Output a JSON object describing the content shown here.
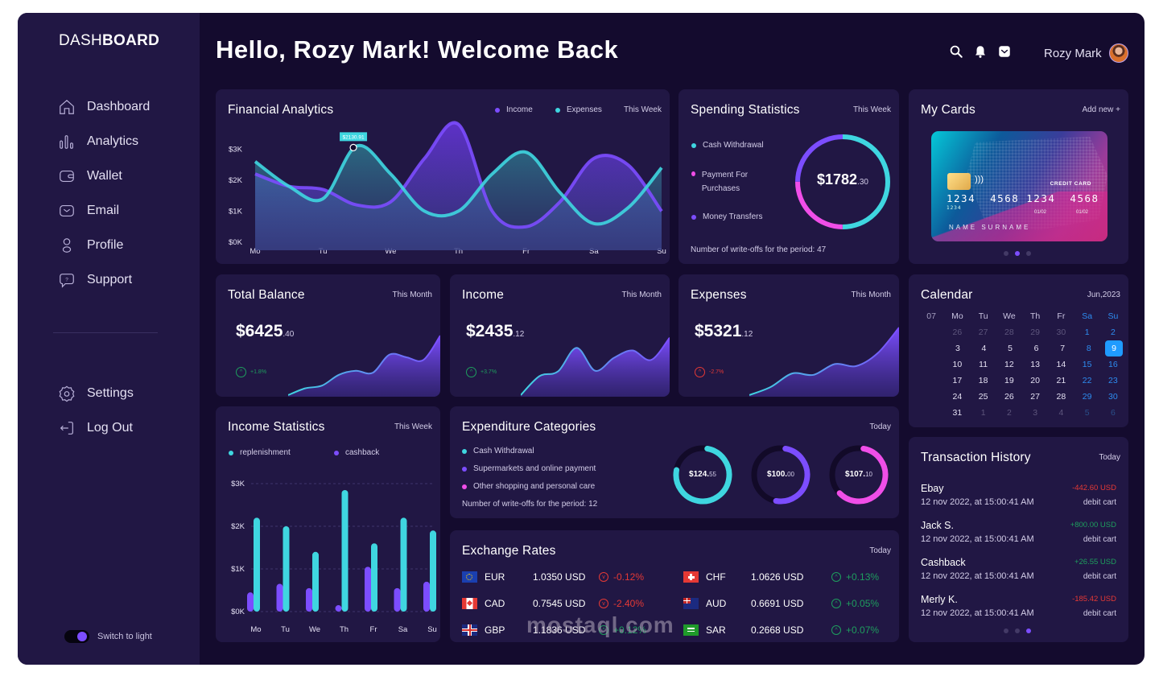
{
  "sidebar": {
    "logo_light": "DASH",
    "logo_bold": "BOARD",
    "items": [
      {
        "label": "Dashboard",
        "icon": "home-icon"
      },
      {
        "label": "Analytics",
        "icon": "bar-chart-icon"
      },
      {
        "label": "Wallet",
        "icon": "wallet-icon"
      },
      {
        "label": "Email",
        "icon": "mail-icon"
      },
      {
        "label": "Profile",
        "icon": "user-icon"
      },
      {
        "label": "Support",
        "icon": "help-chat-icon"
      }
    ],
    "bottom_items": [
      {
        "label": "Settings",
        "icon": "gear-icon"
      },
      {
        "label": "Log Out",
        "icon": "logout-icon"
      }
    ],
    "theme_toggle_label": "Switch to light"
  },
  "header": {
    "greeting": "Hello, Rozy Mark! Welcome Back",
    "user_name": "Rozy Mark"
  },
  "financial_analytics": {
    "title": "Financial Analytics",
    "legend": [
      "Income",
      "Expenses"
    ],
    "period": "This Week",
    "tooltip": "$2130.91",
    "y_ticks": [
      "$3K",
      "$2K",
      "$1K",
      "$0K"
    ],
    "x_ticks": [
      "Mo",
      "Tu",
      "We",
      "Th",
      "Fr",
      "Sa",
      "Su"
    ]
  },
  "spending_statistics": {
    "title": "Spending Statistics",
    "period": "This Week",
    "legend": [
      "Cash  Withdrawal",
      "Payment For Purchases",
      "Money Transfers"
    ],
    "total_main": "$1782",
    "total_cents": ".30",
    "footer": "Number of write-offs for the period: 47",
    "shares": {
      "cash_withdrawal": 0.5,
      "payment_for_purchases": 0.25,
      "money_transfers": 0.25
    }
  },
  "my_cards": {
    "title": "My Cards",
    "add_label": "Add new +",
    "card": {
      "type": "CREDIT CARD",
      "number": "1234  4568 1234  4568",
      "small_number": "1234",
      "valid_from": "01/02",
      "expires": "01/02",
      "holder": "NAME SURNAME"
    },
    "active_page": 2,
    "pages": 3
  },
  "total_balance": {
    "title": "Total Balance",
    "period": "This Month",
    "value": "$6425",
    "cents": ".40",
    "change": "+1.8%",
    "trend": "up"
  },
  "income": {
    "title": "Income",
    "period": "This Month",
    "value": "$2435",
    "cents": ".12",
    "change": "+3.7%",
    "trend": "up"
  },
  "expenses": {
    "title": "Expenses",
    "period": "This Month",
    "value": "$5321",
    "cents": ".12",
    "change": "-2.7%",
    "trend": "down"
  },
  "calendar": {
    "title": "Calendar",
    "month": "Jun,2023",
    "header": [
      "07",
      "Mo",
      "Tu",
      "We",
      "Th",
      "Fr",
      "Sa",
      "Su"
    ],
    "weeks": [
      [
        "26",
        "27",
        "28",
        "29",
        "30",
        "1",
        "2"
      ],
      [
        "3",
        "4",
        "5",
        "6",
        "7",
        "8",
        "9"
      ],
      [
        "10",
        "11",
        "12",
        "13",
        "14",
        "15",
        "16"
      ],
      [
        "17",
        "18",
        "19",
        "20",
        "21",
        "22",
        "23"
      ],
      [
        "24",
        "25",
        "26",
        "27",
        "28",
        "29",
        "30"
      ],
      [
        "31",
        "1",
        "2",
        "3",
        "4",
        "5",
        "6"
      ]
    ],
    "selected": "9"
  },
  "income_statistics": {
    "title": "Income Statistics",
    "period": "This Week",
    "legend": [
      "replenishment",
      "cashback"
    ]
  },
  "expenditure_categories": {
    "title": "Expenditure Categories",
    "period": "Today",
    "legend": [
      "Cash Withdrawal",
      "Supermarkets and online payment",
      "Other shopping and personal care"
    ],
    "footer": "Number of write-offs for the period: 12",
    "rings": [
      {
        "main": "$124.",
        "cents": "55",
        "fraction": 0.75,
        "color": "#3fd6e0"
      },
      {
        "main": "$100.",
        "cents": "00",
        "fraction": 0.5,
        "color": "#7c4dff"
      },
      {
        "main": "$107.",
        "cents": "10",
        "fraction": 0.6,
        "color": "#f04ee8"
      }
    ]
  },
  "exchange_rates": {
    "title": "Exchange Rates",
    "period": "Today",
    "rows": [
      {
        "code": "EUR",
        "rate": "1.0350 USD",
        "change": "-0.12%",
        "trend": "down"
      },
      {
        "code": "CAD",
        "rate": "0.7545 USD",
        "change": "-2.40%",
        "trend": "down"
      },
      {
        "code": "GBP",
        "rate": "1.1836 USD",
        "change": "+0.12%",
        "trend": "up"
      },
      {
        "code": "CHF",
        "rate": "1.0626 USD",
        "change": "+0.13%",
        "trend": "up"
      },
      {
        "code": "AUD",
        "rate": "0.6691 USD",
        "change": "+0.05%",
        "trend": "up"
      },
      {
        "code": "SAR",
        "rate": "0.2668 USD",
        "change": "+0.07%",
        "trend": "up"
      }
    ]
  },
  "transaction_history": {
    "title": "Transaction History",
    "period": "Today",
    "items": [
      {
        "name": "Ebay",
        "date": "12 nov 2022, at 15:00:41 AM",
        "amount": "-442.60 USD",
        "kind": "debit cart",
        "sign": "neg"
      },
      {
        "name": "Jack S.",
        "date": "12 nov 2022, at 15:00:41 AM",
        "amount": "+800.00 USD",
        "kind": "debit cart",
        "sign": "pos"
      },
      {
        "name": "Cashback",
        "date": "12 nov 2022, at 15:00:41 AM",
        "amount": "+26.55 USD",
        "kind": "debit cart",
        "sign": "pos"
      },
      {
        "name": "Merly K.",
        "date": "12 nov 2022, at 15:00:41 AM",
        "amount": "-185.42 USD",
        "kind": "debit cart",
        "sign": "neg"
      }
    ],
    "active_page": 3,
    "pages": 3
  },
  "watermark": "mostaql.com",
  "chart_data": [
    {
      "type": "area",
      "title": "Financial Analytics",
      "categories": [
        "Mo",
        "Tu",
        "We",
        "Th",
        "Fr",
        "Sa",
        "Su"
      ],
      "ylim": [
        0,
        3500
      ],
      "y_ticks": [
        "$0K",
        "$1K",
        "$2K",
        "$3K"
      ],
      "series": [
        {
          "name": "Income",
          "color": "#7c4dff",
          "x": [
            0,
            0.5,
            1,
            1.5,
            2,
            2.5,
            3,
            3.5,
            4,
            4.5,
            5,
            5.5,
            6
          ],
          "values": [
            2200,
            1800,
            1700,
            1200,
            1300,
            2700,
            3800,
            1000,
            500,
            1300,
            2700,
            2500,
            1000
          ]
        },
        {
          "name": "Expenses",
          "color": "#3fd6e0",
          "x": [
            0,
            0.5,
            1,
            1.5,
            2,
            2.5,
            3,
            3.5,
            4,
            4.5,
            5,
            5.5,
            6
          ],
          "values": [
            2600,
            1800,
            1400,
            3100,
            2200,
            1000,
            1000,
            2200,
            2900,
            1600,
            600,
            1100,
            2400
          ]
        }
      ],
      "annotation": {
        "label": "$2130.91",
        "x": 1.45
      }
    },
    {
      "type": "bar",
      "title": "Income Statistics",
      "categories": [
        "Mo",
        "Tu",
        "We",
        "Th",
        "Fr",
        "Sa",
        "Su"
      ],
      "ylim": [
        0,
        3000
      ],
      "y_ticks": [
        "$0K",
        "$1K",
        "$2K",
        "$3K"
      ],
      "grid": true,
      "series": [
        {
          "name": "cashback",
          "color": "#7c4dff",
          "values": [
            450,
            650,
            550,
            150,
            1050,
            550,
            700
          ]
        },
        {
          "name": "replenishment",
          "color": "#3fd6e0",
          "values": [
            2200,
            2000,
            1400,
            2850,
            1600,
            2200,
            1900
          ]
        }
      ]
    },
    {
      "type": "area",
      "title": "Total Balance (sparkline)",
      "values": [
        0,
        10,
        14,
        30,
        36,
        33,
        60,
        56,
        52,
        88
      ]
    },
    {
      "type": "area",
      "title": "Income (sparkline)",
      "values": [
        0,
        28,
        35,
        70,
        36,
        55,
        66,
        52,
        85
      ]
    },
    {
      "type": "area",
      "title": "Expenses (sparkline)",
      "values": [
        0,
        12,
        32,
        30,
        46,
        43,
        62,
        100
      ]
    }
  ]
}
